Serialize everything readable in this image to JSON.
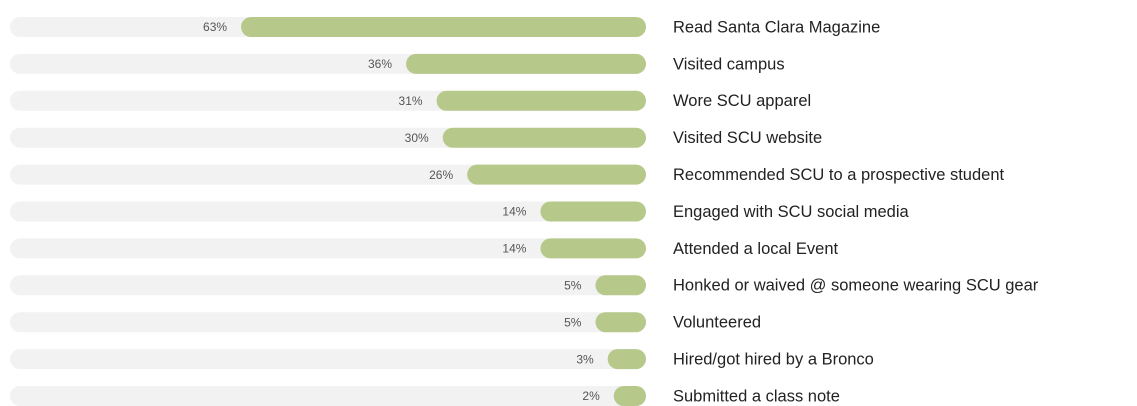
{
  "chart_data": {
    "type": "bar",
    "orientation": "horizontal",
    "categories": [
      "Read Santa Clara Magazine",
      "Visited campus",
      "Wore SCU apparel",
      "Visited SCU website",
      "Recommended SCU to a prospective student",
      "Engaged with SCU social media",
      "Attended a local Event",
      "Honked or waived @ someone wearing SCU gear",
      "Volunteered",
      "Hired/got hired by a Bronco",
      "Submitted a class note"
    ],
    "values": [
      63,
      36,
      31,
      30,
      26,
      14,
      14,
      5,
      5,
      3,
      2
    ],
    "value_labels": [
      "63%",
      "36%",
      "31%",
      "30%",
      "26%",
      "14%",
      "14%",
      "5%",
      "5%",
      "3%",
      "2%"
    ],
    "color": "#b6c98b",
    "xlim": [
      0,
      100
    ]
  }
}
